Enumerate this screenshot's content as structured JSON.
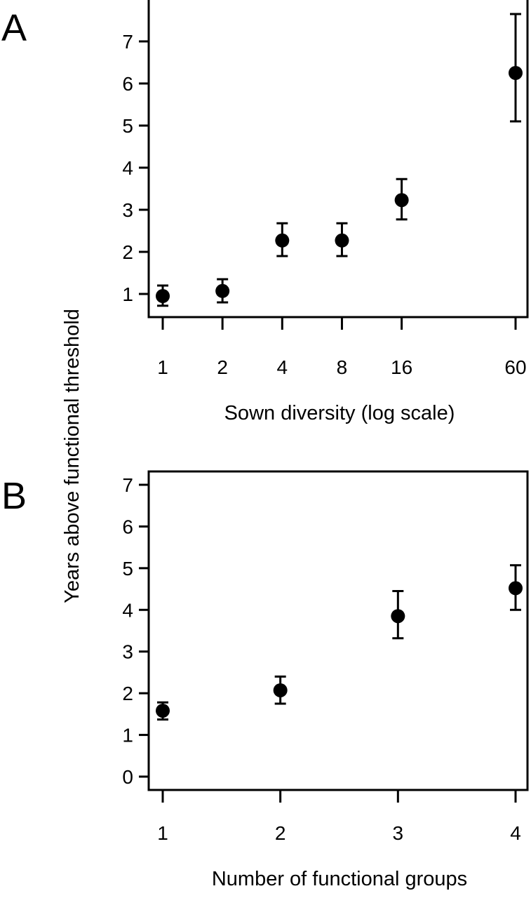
{
  "figure": {
    "ylabel": "Years above functional threshold"
  },
  "chart_data": [
    {
      "type": "scatter",
      "panel_label": "A",
      "xlabel": "Sown diversity (log scale)",
      "x_scale": "log",
      "x": [
        1,
        2,
        4,
        8,
        16,
        60
      ],
      "x_tick_labels": [
        "1",
        "2",
        "4",
        "8",
        "16",
        "60"
      ],
      "y": [
        0.95,
        1.07,
        2.27,
        2.27,
        3.23,
        6.25
      ],
      "y_lower": [
        0.72,
        0.8,
        1.9,
        1.9,
        2.77,
        5.1
      ],
      "y_upper": [
        1.2,
        1.35,
        2.68,
        2.68,
        3.73,
        7.65
      ],
      "y_ticks": [
        "1",
        "2",
        "3",
        "4",
        "5",
        "6",
        "7"
      ],
      "ylim": [
        0.45,
        7.95
      ],
      "grid": false,
      "error_bars": true
    },
    {
      "type": "scatter",
      "panel_label": "B",
      "xlabel": "Number of functional groups",
      "x_scale": "linear",
      "x": [
        1,
        2,
        3,
        4
      ],
      "x_tick_labels": [
        "1",
        "2",
        "3",
        "4"
      ],
      "y": [
        1.58,
        2.07,
        3.85,
        4.52
      ],
      "y_lower": [
        1.37,
        1.75,
        3.32,
        4.0
      ],
      "y_upper": [
        1.78,
        2.4,
        4.45,
        5.07
      ],
      "y_ticks": [
        "0",
        "1",
        "2",
        "3",
        "4",
        "5",
        "6",
        "7"
      ],
      "ylim": [
        -0.32,
        7.32
      ],
      "grid": false,
      "error_bars": true
    }
  ]
}
